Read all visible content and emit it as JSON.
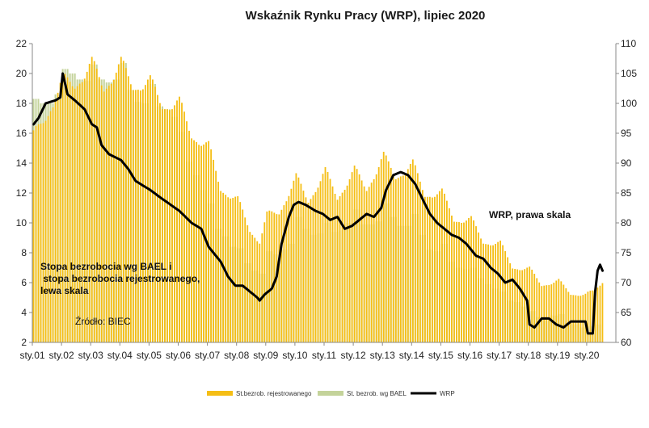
{
  "chart_data": {
    "type": "bar",
    "title": "Wskaźnik Rynku Pracy (WRP), lipiec 2020",
    "x_tick_labels": [
      "sty.01",
      "sty.02",
      "sty.03",
      "sty.04",
      "sty.05",
      "sty.06",
      "sty.07",
      "sty.08",
      "sty.09",
      "sty.10",
      "sty.11",
      "sty.12",
      "sty.13",
      "sty.14",
      "sty.15",
      "sty.16",
      "sty.17",
      "sty.18",
      "sty.19",
      "sty.20"
    ],
    "y_left": {
      "min": 2,
      "max": 22,
      "ticks": [
        "2",
        "4",
        "6",
        "8",
        "10",
        "12",
        "14",
        "16",
        "18",
        "20",
        "22"
      ]
    },
    "y_right": {
      "min": 60,
      "max": 110,
      "ticks": [
        "60",
        "65",
        "70",
        "75",
        "80",
        "85",
        "90",
        "95",
        "100",
        "105",
        "110"
      ]
    },
    "grid": false,
    "legend_position": "bottom",
    "annotations": {
      "left_axis_note": [
        "Stopa bezrobocia wg BAEL i",
        " stopa bezrobocia rejestrowanego,",
        "lewa skala"
      ],
      "source": "Źródło: BIEC",
      "right_axis_note": "WRP, prawa skala"
    },
    "legend": [
      {
        "label": "St.bezrob. rejestrowanego",
        "color": "#f5be15"
      },
      {
        "label": "St. bezrob. wg BAEL",
        "color": "#c4d39a"
      },
      {
        "label": "WRP",
        "color": "#000000"
      }
    ],
    "series": [
      {
        "name": "St.bezrob. rejestrowanego",
        "axis": "left",
        "style": "monthly bars",
        "color": "#f5be15",
        "points": [
          [
            "2001-01",
            15.8
          ],
          [
            "2001-06",
            17.2
          ],
          [
            "2002-01",
            19.5
          ],
          [
            "2002-06",
            19.4
          ],
          [
            "2003-01",
            20.6
          ],
          [
            "2003-06",
            19.2
          ],
          [
            "2004-01",
            20.6
          ],
          [
            "2004-06",
            19.3
          ],
          [
            "2005-01",
            19.4
          ],
          [
            "2005-06",
            18.0
          ],
          [
            "2006-01",
            18.0
          ],
          [
            "2006-06",
            16.0
          ],
          [
            "2007-01",
            15.1
          ],
          [
            "2007-06",
            12.4
          ],
          [
            "2008-01",
            11.5
          ],
          [
            "2008-06",
            9.6
          ],
          [
            "2008-10",
            8.8
          ],
          [
            "2009-01",
            10.5
          ],
          [
            "2009-06",
            10.8
          ],
          [
            "2010-01",
            13.0
          ],
          [
            "2010-06",
            11.6
          ],
          [
            "2011-01",
            13.4
          ],
          [
            "2011-06",
            11.8
          ],
          [
            "2012-01",
            13.5
          ],
          [
            "2012-06",
            12.4
          ],
          [
            "2013-01",
            14.4
          ],
          [
            "2013-06",
            13.2
          ],
          [
            "2014-01",
            13.9
          ],
          [
            "2014-06",
            12.0
          ],
          [
            "2015-01",
            12.0
          ],
          [
            "2015-06",
            10.3
          ],
          [
            "2016-01",
            10.2
          ],
          [
            "2016-06",
            8.8
          ],
          [
            "2017-01",
            8.6
          ],
          [
            "2017-06",
            7.1
          ],
          [
            "2018-01",
            6.9
          ],
          [
            "2018-06",
            5.9
          ],
          [
            "2019-01",
            6.1
          ],
          [
            "2019-06",
            5.3
          ],
          [
            "2019-12",
            5.2
          ],
          [
            "2020-03",
            5.4
          ],
          [
            "2020-07",
            6.1
          ]
        ]
      },
      {
        "name": "St. bezrob. wg BAEL",
        "axis": "left",
        "style": "quarterly bars",
        "color": "#c4d39a",
        "points": [
          [
            "2001-Q1",
            18.3
          ],
          [
            "2001-Q2",
            18.0
          ],
          [
            "2001-Q3",
            18.0
          ],
          [
            "2001-Q4",
            18.6
          ],
          [
            "2002-Q1",
            20.3
          ],
          [
            "2002-Q2",
            20.0
          ],
          [
            "2002-Q3",
            19.6
          ],
          [
            "2002-Q4",
            19.5
          ],
          [
            "2003-Q1",
            20.6
          ],
          [
            "2003-Q2",
            19.6
          ],
          [
            "2003-Q3",
            19.4
          ],
          [
            "2003-Q4",
            19.6
          ],
          [
            "2004-Q1",
            20.7
          ],
          [
            "2004-Q2",
            18.9
          ],
          [
            "2004-Q3",
            18.1
          ],
          [
            "2004-Q4",
            18.0
          ],
          [
            "2005-Q1",
            19.3
          ],
          [
            "2005-Q2",
            17.8
          ],
          [
            "2005-Q3",
            17.6
          ],
          [
            "2005-Q4",
            17.1
          ],
          [
            "2006-Q1",
            16.1
          ],
          [
            "2006-Q2",
            14.1
          ],
          [
            "2006-Q3",
            13.2
          ],
          [
            "2006-Q4",
            12.2
          ],
          [
            "2007-Q1",
            11.3
          ],
          [
            "2007-Q2",
            9.6
          ],
          [
            "2007-Q3",
            9.1
          ],
          [
            "2007-Q4",
            8.4
          ],
          [
            "2008-Q1",
            8.3
          ],
          [
            "2008-Q2",
            7.3
          ],
          [
            "2008-Q3",
            6.8
          ],
          [
            "2008-Q4",
            6.6
          ],
          [
            "2009-Q1",
            8.1
          ],
          [
            "2009-Q2",
            7.9
          ],
          [
            "2009-Q3",
            8.2
          ],
          [
            "2009-Q4",
            8.6
          ],
          [
            "2010-Q1",
            10.4
          ],
          [
            "2010-Q2",
            9.6
          ],
          [
            "2010-Q3",
            9.2
          ],
          [
            "2010-Q4",
            9.3
          ],
          [
            "2011-Q1",
            10.0
          ],
          [
            "2011-Q2",
            9.4
          ],
          [
            "2011-Q3",
            9.5
          ],
          [
            "2011-Q4",
            10.0
          ],
          [
            "2012-Q1",
            10.9
          ],
          [
            "2012-Q2",
            9.9
          ],
          [
            "2012-Q3",
            9.9
          ],
          [
            "2012-Q4",
            10.1
          ],
          [
            "2013-Q1",
            11.3
          ],
          [
            "2013-Q2",
            10.4
          ],
          [
            "2013-Q3",
            9.8
          ],
          [
            "2013-Q4",
            9.8
          ],
          [
            "2014-Q1",
            10.6
          ],
          [
            "2014-Q2",
            9.2
          ],
          [
            "2014-Q3",
            8.2
          ],
          [
            "2014-Q4",
            8.1
          ],
          [
            "2015-Q1",
            8.6
          ],
          [
            "2015-Q2",
            7.4
          ],
          [
            "2015-Q3",
            7.0
          ],
          [
            "2015-Q4",
            6.9
          ],
          [
            "2016-Q1",
            7.0
          ],
          [
            "2016-Q2",
            6.3
          ],
          [
            "2016-Q3",
            5.9
          ],
          [
            "2016-Q4",
            5.6
          ],
          [
            "2017-Q1",
            5.4
          ],
          [
            "2017-Q2",
            4.8
          ],
          [
            "2017-Q3",
            4.7
          ],
          [
            "2017-Q4",
            4.4
          ],
          [
            "2018-Q1",
            4.1
          ],
          [
            "2018-Q2",
            3.7
          ],
          [
            "2018-Q3",
            3.6
          ],
          [
            "2018-Q4",
            3.8
          ],
          [
            "2019-Q1",
            3.9
          ],
          [
            "2019-Q2",
            3.3
          ],
          [
            "2019-Q3",
            3.2
          ],
          [
            "2019-Q4",
            3.0
          ],
          [
            "2020-Q1",
            3.1
          ],
          [
            "2020-Q2",
            3.2
          ]
        ]
      },
      {
        "name": "WRP",
        "axis": "right",
        "style": "line",
        "color": "#000000",
        "points": [
          [
            "2001-01",
            96.5
          ],
          [
            "2001-03",
            97.5
          ],
          [
            "2001-06",
            100.0
          ],
          [
            "2001-10",
            100.5
          ],
          [
            "2001-12",
            101.0
          ],
          [
            "2002-01",
            105.0
          ],
          [
            "2002-03",
            101.5
          ],
          [
            "2002-06",
            100.5
          ],
          [
            "2002-10",
            99.0
          ],
          [
            "2003-01",
            96.5
          ],
          [
            "2003-03",
            96.0
          ],
          [
            "2003-05",
            93.0
          ],
          [
            "2003-08",
            91.5
          ],
          [
            "2004-01",
            90.5
          ],
          [
            "2004-04",
            89.0
          ],
          [
            "2004-07",
            87.0
          ],
          [
            "2005-01",
            85.5
          ],
          [
            "2005-06",
            84.0
          ],
          [
            "2006-01",
            82.0
          ],
          [
            "2006-06",
            80.0
          ],
          [
            "2006-10",
            79.0
          ],
          [
            "2007-01",
            76.0
          ],
          [
            "2007-06",
            73.5
          ],
          [
            "2007-09",
            71.0
          ],
          [
            "2007-12",
            69.5
          ],
          [
            "2008-03",
            69.5
          ],
          [
            "2008-06",
            68.5
          ],
          [
            "2008-09",
            67.5
          ],
          [
            "2008-10",
            67.0
          ],
          [
            "2008-12",
            68.0
          ],
          [
            "2009-03",
            69.0
          ],
          [
            "2009-05",
            71.0
          ],
          [
            "2009-07",
            76.5
          ],
          [
            "2009-10",
            81.0
          ],
          [
            "2009-12",
            83.0
          ],
          [
            "2010-02",
            83.5
          ],
          [
            "2010-05",
            83.0
          ],
          [
            "2010-09",
            82.0
          ],
          [
            "2010-12",
            81.5
          ],
          [
            "2011-03",
            80.5
          ],
          [
            "2011-06",
            81.0
          ],
          [
            "2011-09",
            79.0
          ],
          [
            "2011-12",
            79.5
          ],
          [
            "2012-03",
            80.5
          ],
          [
            "2012-06",
            81.5
          ],
          [
            "2012-09",
            81.0
          ],
          [
            "2012-12",
            82.5
          ],
          [
            "2013-02",
            85.5
          ],
          [
            "2013-05",
            88.0
          ],
          [
            "2013-08",
            88.5
          ],
          [
            "2013-11",
            88.0
          ],
          [
            "2014-02",
            86.5
          ],
          [
            "2014-05",
            84.0
          ],
          [
            "2014-08",
            81.5
          ],
          [
            "2014-11",
            80.0
          ],
          [
            "2015-02",
            79.0
          ],
          [
            "2015-05",
            78.0
          ],
          [
            "2015-08",
            77.5
          ],
          [
            "2015-11",
            76.5
          ],
          [
            "2016-02",
            75.0
          ],
          [
            "2016-03",
            74.5
          ],
          [
            "2016-06",
            74.0
          ],
          [
            "2016-09",
            72.5
          ],
          [
            "2016-12",
            71.5
          ],
          [
            "2017-03",
            70.0
          ],
          [
            "2017-06",
            70.5
          ],
          [
            "2017-09",
            69.0
          ],
          [
            "2017-12",
            67.0
          ],
          [
            "2018-01",
            63.0
          ],
          [
            "2018-03",
            62.5
          ],
          [
            "2018-06",
            64.0
          ],
          [
            "2018-09",
            64.0
          ],
          [
            "2018-12",
            63.0
          ],
          [
            "2019-03",
            62.5
          ],
          [
            "2019-06",
            63.5
          ],
          [
            "2019-09",
            63.5
          ],
          [
            "2019-12",
            63.5
          ],
          [
            "2020-01",
            61.5
          ],
          [
            "2020-03",
            61.5
          ],
          [
            "2020-04",
            68.5
          ],
          [
            "2020-05",
            72.0
          ],
          [
            "2020-06",
            73.0
          ],
          [
            "2020-07",
            72.0
          ]
        ]
      }
    ]
  }
}
